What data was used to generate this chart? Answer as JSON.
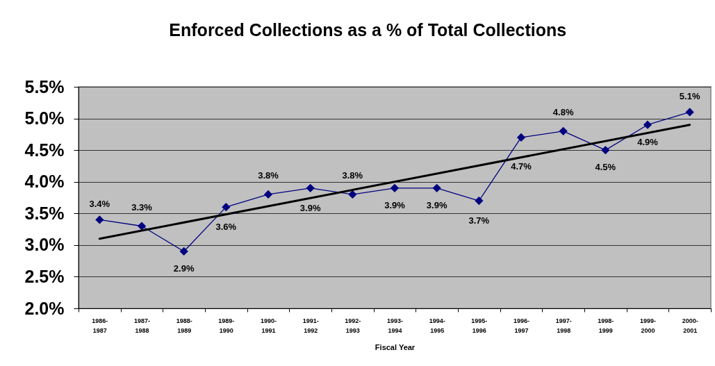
{
  "chart_data": {
    "type": "line",
    "title": "Enforced Collections as a % of Total Collections",
    "xlabel": "Fiscal Year",
    "categories": [
      "1986-\n1987",
      "1987-\n1988",
      "1988-\n1989",
      "1989-\n1990",
      "1990-\n1991",
      "1991-\n1992",
      "1992-\n1993",
      "1993-\n1994",
      "1994-\n1995",
      "1995-\n1996",
      "1996-\n1997",
      "1997-\n1998",
      "1998-\n1999",
      "1999-\n2000",
      "2000-\n2001"
    ],
    "series": [
      {
        "color": "#000080",
        "marker": "diamond",
        "values": [
          3.4,
          3.3,
          2.9,
          3.6,
          3.8,
          3.9,
          3.8,
          3.9,
          3.9,
          3.7,
          4.7,
          4.8,
          4.5,
          4.9,
          5.1
        ],
        "value_labels": [
          "3.4%",
          "3.3%",
          "2.9%",
          "3.6%",
          "3.8%",
          "3.9%",
          "3.8%",
          "3.9%",
          "3.9%",
          "3.7%",
          "4.7%",
          "4.8%",
          "4.5%",
          "4.9%",
          "5.1%"
        ]
      },
      {
        "type": "line",
        "color": "#000000",
        "marker": "none",
        "x": [
          "1986-\n1987",
          "2000-\n2001"
        ],
        "values": [
          3.1,
          4.9
        ]
      }
    ],
    "ylim": [
      2.0,
      5.5
    ],
    "yticks": [
      {
        "value": 2.0,
        "label": "2.0%"
      },
      {
        "value": 2.5,
        "label": "2.5%"
      },
      {
        "value": 3.0,
        "label": "3.0%"
      },
      {
        "value": 3.5,
        "label": "3.5%"
      },
      {
        "value": 4.0,
        "label": "4.0%"
      },
      {
        "value": 4.5,
        "label": "4.5%"
      },
      {
        "value": 5.0,
        "label": "5.0%"
      },
      {
        "value": 5.5,
        "label": "5.5%"
      }
    ],
    "grid": "y",
    "line_style": "solid"
  }
}
